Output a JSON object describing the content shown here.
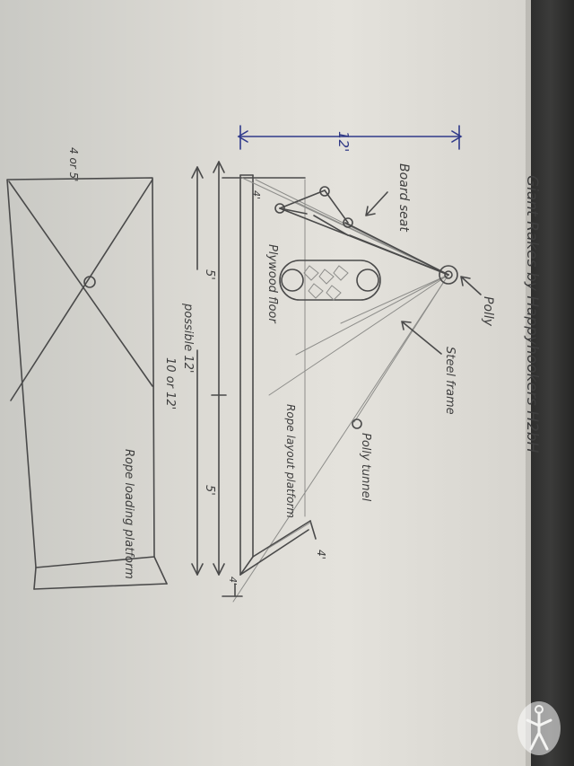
{
  "title": "Giant Rakes by Happyhookers H2bH",
  "labels": {
    "board_seat": "Board seat",
    "polly": "Polly",
    "steel_frame": "Steel frame",
    "polly_tunnel": "Polly tunnel",
    "plywood_floor": "Plywood floor",
    "rope_layout_platform": "Rope layout platform",
    "rope_loading_platform": "Rope loading platform",
    "height": "12'",
    "section_a": "5'",
    "section_b": "5'",
    "possible": "possible 12'",
    "total": "10 or 12'",
    "ramp_width": "4'",
    "small_a": "4'",
    "small_b": "4'",
    "box_size": "4 or 5'"
  },
  "colors": {
    "pencil": "#4a4a4a",
    "blue_ink": "#303a8a",
    "paper": "#e0ded8",
    "binding": "#3b3b3a"
  },
  "watermark_icon": "stick-figure-logo"
}
